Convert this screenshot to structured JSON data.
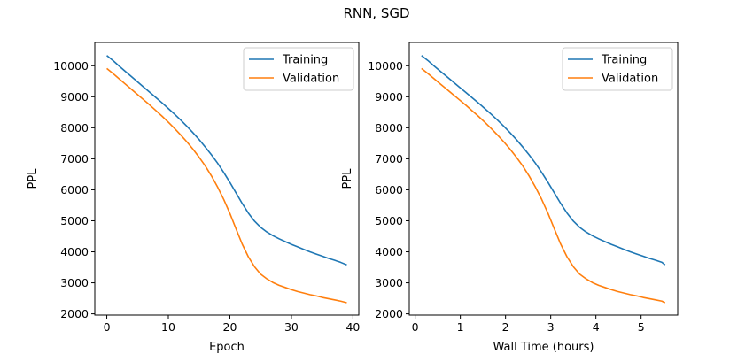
{
  "figure": {
    "title": "RNN, SGD"
  },
  "colors": {
    "training": "#1f77b4",
    "validation": "#ff7f0e"
  },
  "chart_data": [
    {
      "type": "line",
      "xlabel": "Epoch",
      "ylabel": "PPL",
      "xlim": [
        -1.95,
        40.95
      ],
      "ylim": [
        1960,
        10750
      ],
      "xticks": [
        0,
        10,
        20,
        30,
        40
      ],
      "yticks": [
        2000,
        3000,
        4000,
        5000,
        6000,
        7000,
        8000,
        9000,
        10000
      ],
      "legend": {
        "position": "top-right"
      },
      "series": [
        {
          "name": "Training",
          "x": [
            0,
            1,
            2,
            3,
            4,
            5,
            6,
            7,
            8,
            9,
            10,
            11,
            12,
            13,
            14,
            15,
            16,
            17,
            18,
            19,
            20,
            21,
            22,
            23,
            24,
            25,
            26,
            27,
            28,
            29,
            30,
            31,
            32,
            33,
            34,
            35,
            36,
            37,
            38,
            39
          ],
          "y": [
            10330,
            10170,
            9990,
            9820,
            9650,
            9480,
            9310,
            9140,
            8970,
            8800,
            8620,
            8440,
            8250,
            8050,
            7840,
            7620,
            7380,
            7130,
            6860,
            6560,
            6240,
            5900,
            5560,
            5250,
            4990,
            4790,
            4640,
            4520,
            4420,
            4330,
            4240,
            4160,
            4080,
            4000,
            3930,
            3860,
            3790,
            3730,
            3660,
            3580
          ]
        },
        {
          "name": "Validation",
          "x": [
            0,
            1,
            2,
            3,
            4,
            5,
            6,
            7,
            8,
            9,
            10,
            11,
            12,
            13,
            14,
            15,
            16,
            17,
            18,
            19,
            20,
            21,
            22,
            23,
            24,
            25,
            26,
            27,
            28,
            29,
            30,
            31,
            32,
            33,
            34,
            35,
            36,
            37,
            38,
            39
          ],
          "y": [
            9910,
            9750,
            9580,
            9410,
            9240,
            9070,
            8900,
            8730,
            8550,
            8370,
            8180,
            7980,
            7770,
            7550,
            7310,
            7050,
            6770,
            6450,
            6090,
            5690,
            5240,
            4740,
            4250,
            3840,
            3520,
            3280,
            3130,
            3010,
            2920,
            2850,
            2780,
            2720,
            2670,
            2620,
            2580,
            2530,
            2490,
            2450,
            2410,
            2360
          ]
        }
      ]
    },
    {
      "type": "line",
      "xlabel": "Wall Time (hours)",
      "ylabel": "PPL",
      "xlim": [
        -0.13,
        5.81
      ],
      "ylim": [
        1960,
        10750
      ],
      "xticks": [
        0,
        1,
        2,
        3,
        4,
        5
      ],
      "yticks": [
        2000,
        3000,
        4000,
        5000,
        6000,
        7000,
        8000,
        9000,
        10000
      ],
      "legend": {
        "position": "top-right"
      },
      "series": [
        {
          "name": "Training",
          "x": [
            0.14,
            0.28,
            0.42,
            0.56,
            0.7,
            0.84,
            0.98,
            1.12,
            1.26,
            1.4,
            1.54,
            1.68,
            1.82,
            1.96,
            2.1,
            2.24,
            2.38,
            2.52,
            2.66,
            2.8,
            2.94,
            3.08,
            3.22,
            3.36,
            3.5,
            3.64,
            3.78,
            3.92,
            4.06,
            4.2,
            4.34,
            4.48,
            4.62,
            4.76,
            4.9,
            5.04,
            5.18,
            5.32,
            5.46,
            5.53
          ],
          "y": [
            10330,
            10170,
            9990,
            9820,
            9650,
            9480,
            9310,
            9140,
            8970,
            8800,
            8620,
            8440,
            8250,
            8050,
            7840,
            7620,
            7380,
            7130,
            6860,
            6560,
            6240,
            5900,
            5560,
            5250,
            4990,
            4790,
            4640,
            4520,
            4420,
            4330,
            4240,
            4160,
            4080,
            4000,
            3930,
            3860,
            3790,
            3730,
            3660,
            3580
          ]
        },
        {
          "name": "Validation",
          "x": [
            0.14,
            0.28,
            0.42,
            0.56,
            0.7,
            0.84,
            0.98,
            1.12,
            1.26,
            1.4,
            1.54,
            1.68,
            1.82,
            1.96,
            2.1,
            2.24,
            2.38,
            2.52,
            2.66,
            2.8,
            2.94,
            3.08,
            3.22,
            3.36,
            3.5,
            3.64,
            3.78,
            3.92,
            4.06,
            4.2,
            4.34,
            4.48,
            4.62,
            4.76,
            4.9,
            5.04,
            5.18,
            5.32,
            5.46,
            5.53
          ],
          "y": [
            9910,
            9750,
            9580,
            9410,
            9240,
            9070,
            8900,
            8730,
            8550,
            8370,
            8180,
            7980,
            7770,
            7550,
            7310,
            7050,
            6770,
            6450,
            6090,
            5690,
            5240,
            4740,
            4250,
            3840,
            3520,
            3280,
            3130,
            3010,
            2920,
            2850,
            2780,
            2720,
            2670,
            2620,
            2580,
            2530,
            2490,
            2450,
            2410,
            2360
          ]
        }
      ]
    }
  ]
}
